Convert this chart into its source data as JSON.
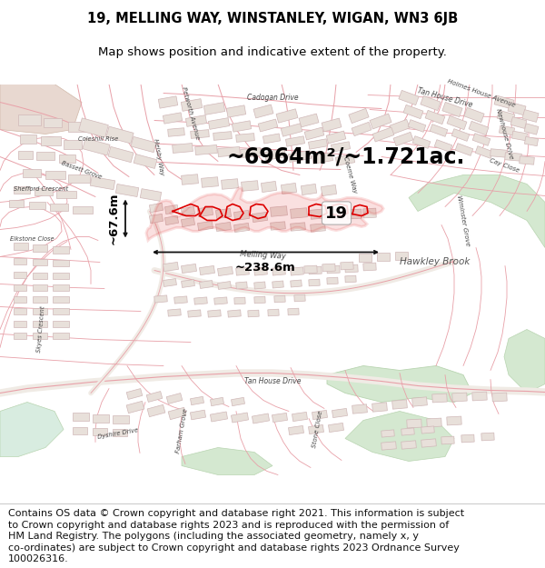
{
  "title_line1": "19, MELLING WAY, WINSTANLEY, WIGAN, WN3 6JB",
  "title_line2": "Map shows position and indicative extent of the property.",
  "area_text": "~6964m²/~1.721ac.",
  "width_label": "~238.6m",
  "height_label": "~67.6m",
  "number_label": "19",
  "footer_lines": [
    "Contains OS data © Crown copyright and database right 2021. This information is subject",
    "to Crown copyright and database rights 2023 and is reproduced with the permission of",
    "HM Land Registry. The polygons (including the associated geometry, namely x, y",
    "co-ordinates) are subject to Crown copyright and database rights 2023 Ordnance Survey",
    "100026316."
  ],
  "map_bg": "#f5f0eb",
  "street_color": "#e8a0a8",
  "building_face": "#e8e0da",
  "building_edge": "#d0b8b8",
  "green_color": "#d4e8d0",
  "green_edge": "#b8d4b0",
  "water_color": "#c8dce8",
  "plot_color": "#dd0000",
  "dim_color": "#111111",
  "text_label_color": "#444444",
  "title_fs": 10.5,
  "subtitle_fs": 9.5,
  "area_fs": 17,
  "dim_fs": 9.5,
  "label_fs": 6.5,
  "footer_fs": 8.0,
  "hawkley_fs": 7.5
}
